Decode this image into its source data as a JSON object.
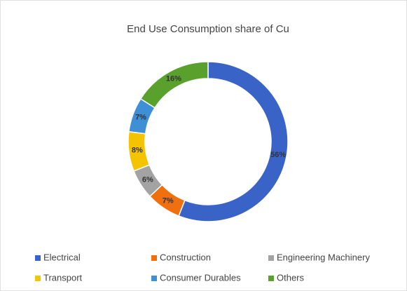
{
  "chart_data": {
    "type": "donut",
    "title": "End Use Consumption share of Cu",
    "categories": [
      "Electrical",
      "Construction",
      "Engineering Machinery",
      "Transport",
      "Consumer Durables",
      "Others"
    ],
    "values": [
      56,
      7,
      6,
      8,
      7,
      16
    ],
    "value_labels": [
      "56%",
      "7%",
      "6%",
      "8%",
      "7%",
      "16%"
    ],
    "colors": [
      "#3a63c8",
      "#f0700f",
      "#a3a3a3",
      "#f5c400",
      "#3e8fd6",
      "#5aa02c"
    ],
    "legend": "bottom"
  }
}
